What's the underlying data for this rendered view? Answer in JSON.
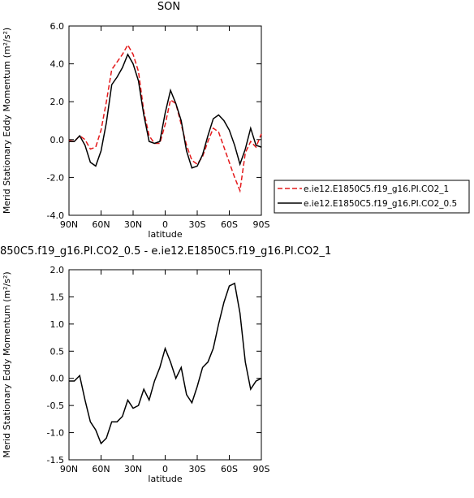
{
  "chart_data": [
    {
      "type": "line",
      "title": "SON",
      "xlabel": "latitude",
      "ylabel": "Merid Stationary Eddy Momentum (m²/s²)",
      "x": [
        90,
        85,
        80,
        75,
        70,
        65,
        60,
        55,
        50,
        45,
        40,
        35,
        30,
        25,
        20,
        15,
        10,
        5,
        0,
        -5,
        -10,
        -15,
        -20,
        -25,
        -30,
        -35,
        -40,
        -45,
        -50,
        -55,
        -60,
        -65,
        -70,
        -75,
        -80,
        -85,
        -90
      ],
      "xlim": [
        90,
        -90
      ],
      "xticks": [
        {
          "value": 90,
          "label": "90N"
        },
        {
          "value": 60,
          "label": "60N"
        },
        {
          "value": 30,
          "label": "30N"
        },
        0,
        {
          "value": -30,
          "label": "30S"
        },
        {
          "value": -60,
          "label": "60S"
        },
        {
          "value": -90,
          "label": "90S"
        }
      ],
      "ylim": [
        -4,
        6
      ],
      "yticks": [
        {
          "value": -4,
          "label": "-4.0"
        },
        {
          "value": -2,
          "label": "-2.0"
        },
        {
          "value": 0,
          "label": "0.0"
        },
        {
          "value": 2,
          "label": "2.0"
        },
        {
          "value": 4,
          "label": "4.0"
        },
        {
          "value": 6,
          "label": "6.0"
        }
      ],
      "series": [
        {
          "name": "e.ie12.E1850C5.f19_g16.PI.CO2_1",
          "color": "#e41a1c",
          "linestyle": "dashed",
          "values": [
            -0.05,
            -0.1,
            0.2,
            0.0,
            -0.5,
            -0.4,
            0.5,
            2.0,
            3.7,
            4.1,
            4.5,
            5.0,
            4.5,
            3.6,
            1.5,
            0.2,
            -0.2,
            -0.2,
            0.8,
            2.1,
            1.9,
            0.8,
            -0.3,
            -1.1,
            -1.3,
            -0.9,
            -0.1,
            0.6,
            0.4,
            -0.4,
            -1.2,
            -2.0,
            -2.7,
            -0.7,
            -0.1,
            -0.4,
            0.3
          ]
        },
        {
          "name": "e.ie12.E1850C5.f19_g16.PI.CO2_0.5",
          "color": "#000000",
          "linestyle": "solid",
          "values": [
            -0.1,
            -0.1,
            0.2,
            -0.3,
            -1.2,
            -1.4,
            -0.6,
            0.9,
            2.9,
            3.3,
            3.8,
            4.5,
            4.0,
            3.1,
            1.3,
            -0.1,
            -0.2,
            -0.1,
            1.4,
            2.6,
            1.9,
            1.0,
            -0.6,
            -1.5,
            -1.4,
            -0.8,
            0.2,
            1.1,
            1.3,
            1.0,
            0.5,
            -0.3,
            -1.3,
            -0.5,
            0.6,
            -0.3,
            -0.4
          ]
        }
      ]
    },
    {
      "type": "line",
      "title": "850C5.f19_g16.PI.CO2_0.5 - e.ie12.E1850C5.f19_g16.PI.CO2_1",
      "xlabel": "latitude",
      "ylabel": "Merid Stationary Eddy Momentum (m²/s²)",
      "x": [
        90,
        85,
        80,
        75,
        70,
        65,
        60,
        55,
        50,
        45,
        40,
        35,
        30,
        25,
        20,
        15,
        10,
        5,
        0,
        -5,
        -10,
        -15,
        -20,
        -25,
        -30,
        -35,
        -40,
        -45,
        -50,
        -55,
        -60,
        -65,
        -70,
        -75,
        -80,
        -85,
        -90
      ],
      "xlim": [
        90,
        -90
      ],
      "xticks": [
        {
          "value": 90,
          "label": "90N"
        },
        {
          "value": 60,
          "label": "60N"
        },
        {
          "value": 30,
          "label": "30N"
        },
        0,
        {
          "value": -30,
          "label": "30S"
        },
        {
          "value": -60,
          "label": "60S"
        },
        {
          "value": -90,
          "label": "90S"
        }
      ],
      "ylim": [
        -1.5,
        2.0
      ],
      "yticks": [
        -1.5,
        {
          "value": -1.0,
          "label": "-1.0"
        },
        -0.5,
        {
          "value": 0,
          "label": "0.0"
        },
        0.5,
        {
          "value": 1.0,
          "label": "1.0"
        },
        1.5,
        {
          "value": 2.0,
          "label": "2.0"
        }
      ],
      "series": [
        {
          "color": "#000000",
          "linestyle": "solid",
          "values": [
            -0.05,
            -0.05,
            0.05,
            -0.4,
            -0.8,
            -0.95,
            -1.2,
            -1.1,
            -0.8,
            -0.8,
            -0.7,
            -0.4,
            -0.55,
            -0.5,
            -0.2,
            -0.4,
            -0.05,
            0.2,
            0.55,
            0.3,
            0.0,
            0.2,
            -0.3,
            -0.45,
            -0.15,
            0.2,
            0.3,
            0.55,
            1.0,
            1.4,
            1.7,
            1.75,
            1.2,
            0.3,
            -0.2,
            -0.05,
            0.0
          ]
        }
      ]
    }
  ]
}
